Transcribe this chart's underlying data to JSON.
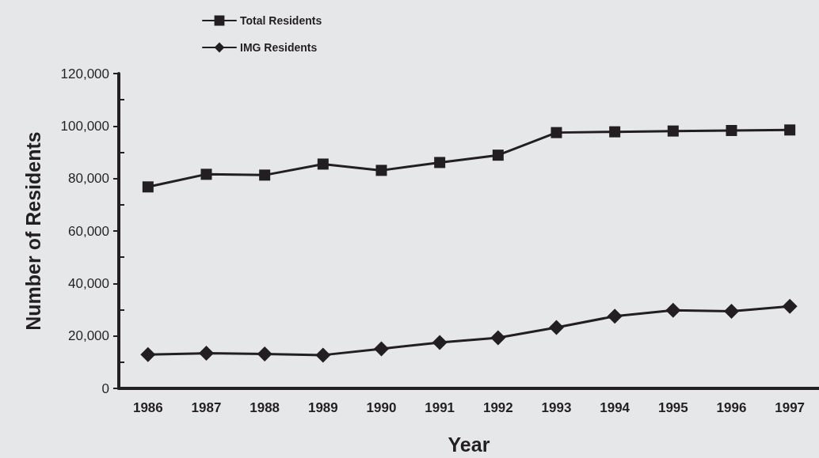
{
  "chart_data": {
    "type": "line",
    "xlabel": "Year",
    "ylabel": "Number of Residents",
    "categories": [
      "1986",
      "1987",
      "1988",
      "1989",
      "1990",
      "1991",
      "1992",
      "1993",
      "1994",
      "1995",
      "1996",
      "1997"
    ],
    "series": [
      {
        "name": "Total Residents",
        "color": "#231f20",
        "marker": "square",
        "values": [
          76800,
          81600,
          81300,
          85500,
          83100,
          86100,
          88900,
          97500,
          97800,
          98100,
          98300,
          98500
        ]
      },
      {
        "name": "IMG Residents",
        "color": "#231f20",
        "marker": "diamond",
        "values": [
          12900,
          13400,
          13100,
          12700,
          15100,
          17500,
          19300,
          23200,
          27500,
          29800,
          29400,
          31300
        ]
      }
    ],
    "ylim": [
      0,
      120000
    ],
    "yticks": [
      0,
      {
        "value": 10000,
        "label": null
      },
      {
        "value": 20000,
        "label": "20,000"
      },
      {
        "value": 30000,
        "label": null
      },
      {
        "value": 40000,
        "label": "40,000"
      },
      {
        "value": 50000,
        "label": null
      },
      {
        "value": 60000,
        "label": "60,000"
      },
      {
        "value": 70000,
        "label": null
      },
      {
        "value": 80000,
        "label": "80,000"
      },
      {
        "value": 90000,
        "label": null
      },
      {
        "value": 100000,
        "label": "100,000"
      },
      {
        "value": 110000,
        "label": null
      },
      {
        "value": 120000,
        "label": "120,000"
      }
    ],
    "legend": "top left",
    "line_style": "solid"
  }
}
